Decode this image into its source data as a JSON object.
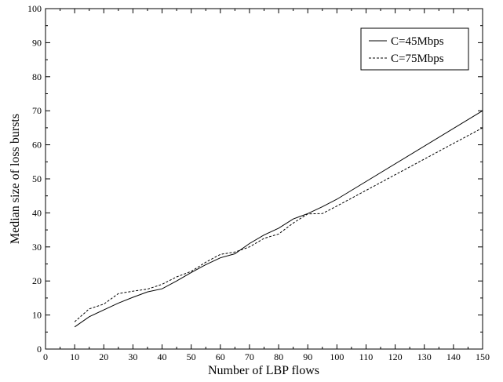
{
  "chart_data": {
    "type": "line",
    "xlabel": "Number of LBP flows",
    "ylabel": "Median size of loss bursts",
    "xlim": [
      0,
      150
    ],
    "ylim": [
      0,
      100
    ],
    "xticks": [
      0,
      10,
      20,
      30,
      40,
      50,
      60,
      70,
      80,
      90,
      100,
      110,
      120,
      130,
      140,
      150
    ],
    "yticks": [
      0,
      10,
      20,
      30,
      40,
      50,
      60,
      70,
      80,
      90,
      100
    ],
    "grid": false,
    "legend_position": "top-right",
    "x": [
      10,
      15,
      20,
      25,
      30,
      35,
      40,
      45,
      50,
      55,
      60,
      65,
      70,
      75,
      80,
      85,
      90,
      95,
      100,
      150
    ],
    "series": [
      {
        "name": "C=45Mbps",
        "line_style": "solid",
        "color": "#000000",
        "values": [
          6.5,
          9.5,
          11.5,
          13.5,
          15.2,
          16.8,
          17.7,
          20.0,
          22.5,
          24.8,
          26.8,
          28.0,
          31.0,
          33.5,
          35.5,
          38.2,
          39.8,
          41.8,
          44.0,
          70.0
        ]
      },
      {
        "name": "C=75Mbps",
        "line_style": "dashed",
        "color": "#000000",
        "values": [
          8.0,
          11.8,
          13.2,
          16.3,
          17.0,
          17.6,
          19.0,
          21.2,
          22.8,
          25.5,
          27.8,
          28.5,
          30.0,
          32.5,
          33.8,
          37.0,
          39.7,
          39.8,
          42.0,
          65.0
        ]
      }
    ]
  }
}
